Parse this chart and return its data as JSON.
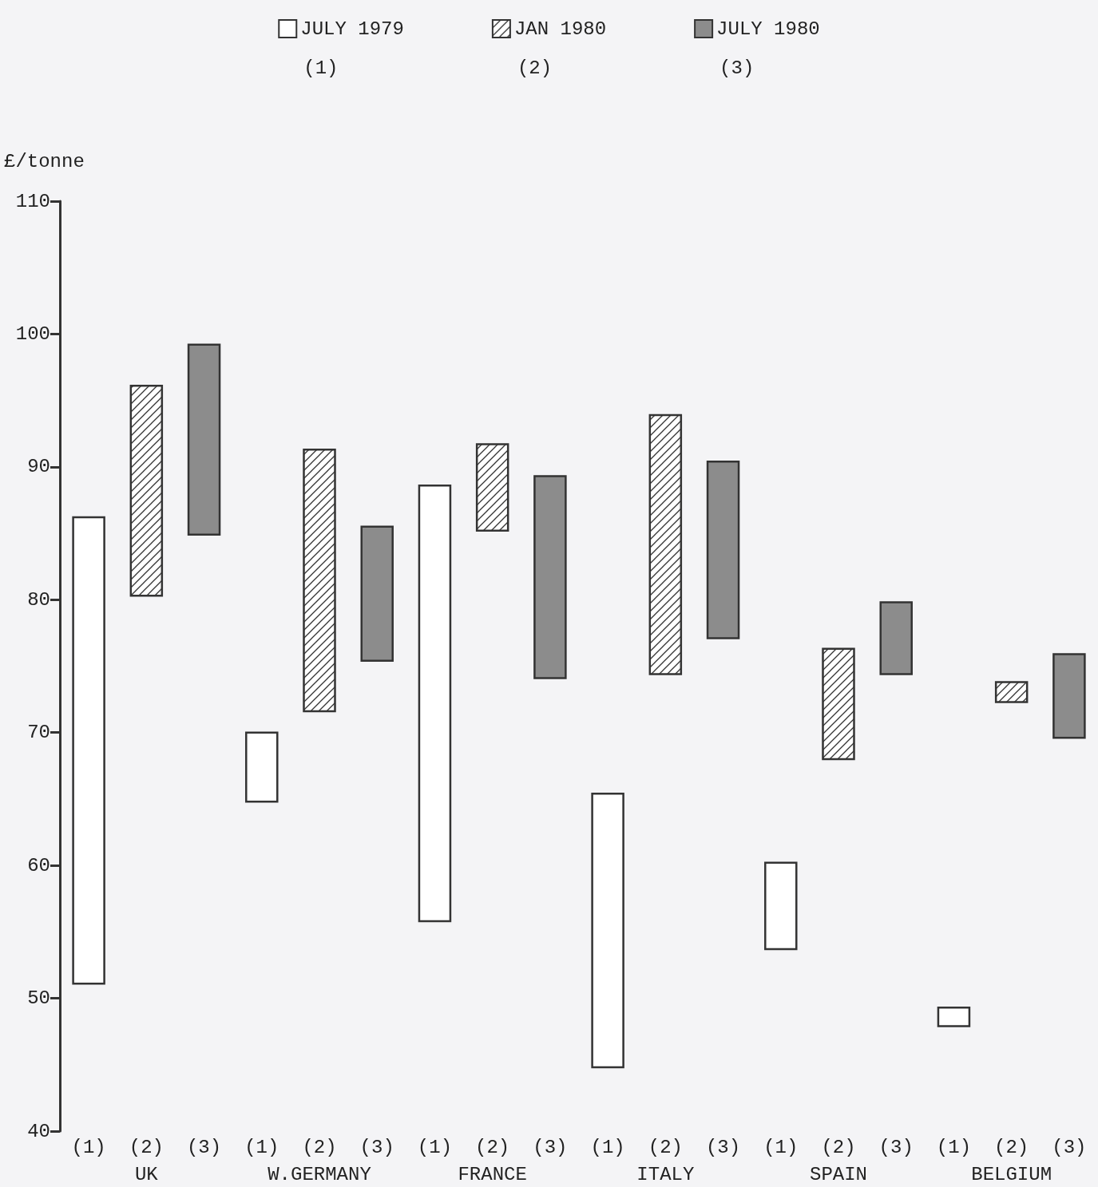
{
  "chart_data": {
    "type": "bar",
    "ylabel": "£/tonne",
    "categories": [
      "UK",
      "W.GERMANY",
      "FRANCE",
      "ITALY",
      "SPAIN",
      "BELGIUM"
    ],
    "series": [
      {
        "name": "JULY 1979",
        "color": "#ffffff",
        "base": [
          51.1,
          64.8,
          55.8,
          44.8,
          53.7,
          47.9
        ],
        "values": [
          35.1,
          5.2,
          32.8,
          20.6,
          6.5,
          1.4
        ]
      },
      {
        "name": "JAN 1980",
        "color": "#333333",
        "base": [
          80.3,
          71.6,
          85.2,
          74.4,
          68,
          72.3
        ],
        "values": [
          15.8,
          19.7,
          6.5,
          19.5,
          8.3,
          1.5
        ]
      },
      {
        "name": "JULY 1980",
        "color": "#8c8c8c",
        "base": [
          84.9,
          75.4,
          74.1,
          77.1,
          74.4,
          69.6
        ],
        "values": [
          14.3,
          10.1,
          15.2,
          13.3,
          5.4,
          6.3
        ]
      }
    ],
    "ylim": [
      40,
      110
    ],
    "yticks": [
      40,
      50,
      60,
      70,
      80,
      90,
      100,
      110
    ],
    "annotations": [
      "(1)",
      "(2)",
      "(3)"
    ],
    "grid": false,
    "legend": "top"
  }
}
